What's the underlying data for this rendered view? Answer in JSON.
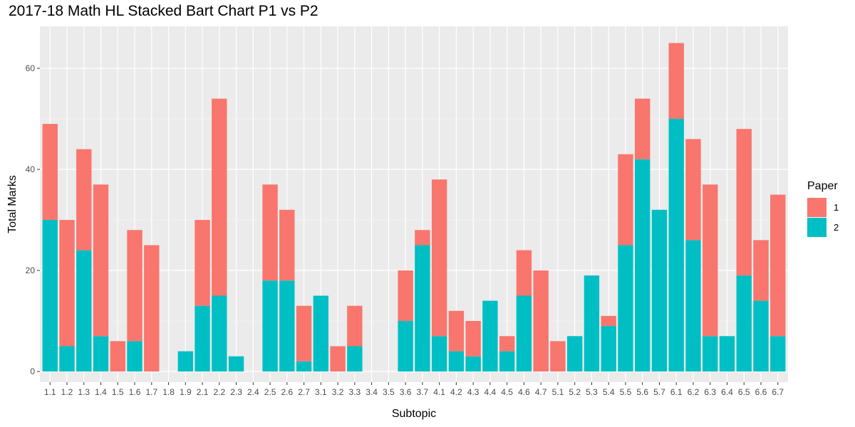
{
  "chart_data": {
    "type": "bar",
    "stacked": true,
    "title": "2017-18 Math HL Stacked Bart Chart P1 vs P2",
    "xlabel": "Subtopic",
    "ylabel": "Total Marks",
    "ylim": [
      0,
      68
    ],
    "yticks": [
      0,
      20,
      40,
      60
    ],
    "grid": true,
    "legend": {
      "title": "Paper",
      "position": "right"
    },
    "categories": [
      "1.1",
      "1.2",
      "1.3",
      "1.4",
      "1.5",
      "1.6",
      "1.7",
      "1.8",
      "1.9",
      "2.1",
      "2.2",
      "2.3",
      "2.4",
      "2.5",
      "2.6",
      "2.7",
      "3.1",
      "3.2",
      "3.3",
      "3.4",
      "3.5",
      "3.6",
      "3.7",
      "4.1",
      "4.2",
      "4.3",
      "4.4",
      "4.5",
      "4.6",
      "4.7",
      "5.1",
      "5.2",
      "5.3",
      "5.4",
      "5.5",
      "5.6",
      "5.7",
      "6.1",
      "6.2",
      "6.3",
      "6.4",
      "6.5",
      "6.6",
      "6.7"
    ],
    "series": [
      {
        "name": "1",
        "color": "#F8766D",
        "values": [
          19,
          25,
          20,
          30,
          6,
          22,
          25,
          0,
          0,
          17,
          39,
          0,
          0,
          19,
          14,
          11,
          0,
          5,
          8,
          0,
          0,
          10,
          3,
          31,
          8,
          7,
          0,
          3,
          9,
          20,
          6,
          0,
          0,
          2,
          18,
          12,
          0,
          15,
          20,
          30,
          0,
          29,
          12,
          28
        ]
      },
      {
        "name": "2",
        "color": "#00BFC4",
        "values": [
          30,
          5,
          24,
          7,
          0,
          6,
          0,
          0,
          4,
          13,
          15,
          3,
          0,
          18,
          18,
          2,
          15,
          0,
          5,
          0,
          0,
          10,
          25,
          7,
          4,
          3,
          14,
          4,
          15,
          0,
          0,
          7,
          19,
          9,
          25,
          42,
          32,
          50,
          26,
          7,
          7,
          19,
          14,
          7
        ]
      }
    ],
    "stack_order_bottom_to_top": [
      "2",
      "1"
    ]
  }
}
